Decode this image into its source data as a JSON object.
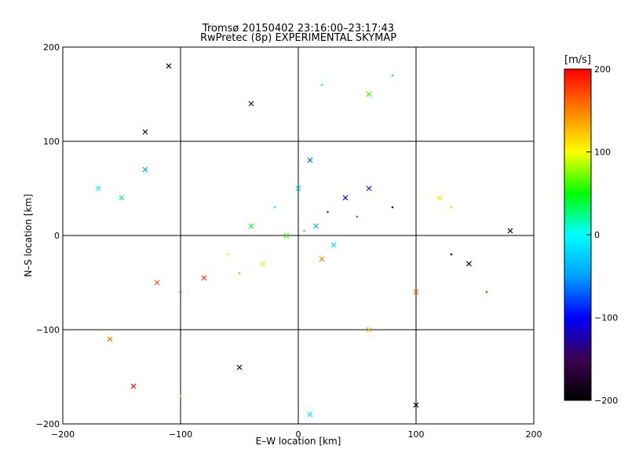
{
  "chart_data": {
    "type": "scatter",
    "title": "Tromsø 20150402 23:16:00–23:17:43",
    "subtitle": "RwPretec (8p) EXPERIMENTAL SKYMAP",
    "xlabel": "E–W location [km]",
    "ylabel": "N–S location [km]",
    "xlim": [
      -200,
      200
    ],
    "ylim": [
      -200,
      200
    ],
    "xticks": [
      "−200",
      "−100",
      "0",
      "100",
      "200"
    ],
    "yticks": [
      "−200",
      "−100",
      "0",
      "100",
      "200"
    ],
    "x_tick_values": [
      -200,
      -100,
      0,
      100,
      200
    ],
    "y_tick_values": [
      -200,
      -100,
      0,
      100,
      200
    ],
    "grid": true,
    "colorbar": {
      "label": "[m/s]",
      "min": -200,
      "max": 200,
      "tick_labels": [
        "200",
        "100",
        "0",
        "−100",
        "−200"
      ],
      "tick_values": [
        200,
        100,
        0,
        -100,
        -200
      ],
      "colormap": [
        "#000000",
        "#3d0050",
        "#0000ff",
        "#00a0ff",
        "#00ffff",
        "#00ff00",
        "#ffff00",
        "#ff8000",
        "#ff0000"
      ]
    },
    "markers": [
      "dot",
      "x"
    ],
    "points": [
      {
        "x": 15,
        "y": 10,
        "v": -40,
        "m": "x"
      },
      {
        "x": 25,
        "y": 25,
        "v": -80,
        "m": "dot"
      },
      {
        "x": 5,
        "y": 5,
        "v": 20,
        "m": "dot"
      },
      {
        "x": -10,
        "y": 0,
        "v": 60,
        "m": "x"
      },
      {
        "x": 40,
        "y": 40,
        "v": -110,
        "m": "x"
      },
      {
        "x": 60,
        "y": 50,
        "v": -90,
        "m": "x"
      },
      {
        "x": 80,
        "y": 30,
        "v": -130,
        "m": "dot"
      },
      {
        "x": 50,
        "y": 20,
        "v": -60,
        "m": "dot"
      },
      {
        "x": 30,
        "y": -10,
        "v": -20,
        "m": "x"
      },
      {
        "x": 20,
        "y": -25,
        "v": 150,
        "m": "x"
      },
      {
        "x": -30,
        "y": -30,
        "v": 110,
        "m": "x"
      },
      {
        "x": -50,
        "y": -40,
        "v": 140,
        "m": "dot"
      },
      {
        "x": -80,
        "y": -45,
        "v": 180,
        "m": "x"
      },
      {
        "x": -100,
        "y": -60,
        "v": 190,
        "m": "dot"
      },
      {
        "x": -120,
        "y": -50,
        "v": 170,
        "m": "x"
      },
      {
        "x": -60,
        "y": -20,
        "v": 90,
        "m": "dot"
      },
      {
        "x": -40,
        "y": 10,
        "v": 40,
        "m": "x"
      },
      {
        "x": -20,
        "y": 30,
        "v": 10,
        "m": "dot"
      },
      {
        "x": 0,
        "y": 50,
        "v": -30,
        "m": "x"
      },
      {
        "x": 10,
        "y": 80,
        "v": -70,
        "m": "x"
      },
      {
        "x": -150,
        "y": 40,
        "v": 30,
        "m": "x"
      },
      {
        "x": -170,
        "y": 50,
        "v": -10,
        "m": "x"
      },
      {
        "x": -130,
        "y": 70,
        "v": -50,
        "m": "x"
      },
      {
        "x": -160,
        "y": -110,
        "v": 160,
        "m": "x"
      },
      {
        "x": -140,
        "y": -160,
        "v": 200,
        "m": "x"
      },
      {
        "x": -100,
        "y": -170,
        "v": 120,
        "m": "dot"
      },
      {
        "x": 130,
        "y": -20,
        "v": -190,
        "m": "dot"
      },
      {
        "x": 145,
        "y": -30,
        "v": -200,
        "m": "x"
      },
      {
        "x": 120,
        "y": 40,
        "v": 110,
        "m": "x"
      },
      {
        "x": 130,
        "y": 30,
        "v": 80,
        "m": "dot"
      },
      {
        "x": 100,
        "y": -60,
        "v": 160,
        "m": "x"
      },
      {
        "x": 160,
        "y": -60,
        "v": 180,
        "m": "dot"
      },
      {
        "x": 60,
        "y": 150,
        "v": 60,
        "m": "x"
      },
      {
        "x": 80,
        "y": 170,
        "v": 40,
        "m": "dot"
      },
      {
        "x": 20,
        "y": 160,
        "v": 20,
        "m": "dot"
      },
      {
        "x": -110,
        "y": 180,
        "v": -200,
        "m": "x"
      },
      {
        "x": -130,
        "y": 110,
        "v": -180,
        "m": "x"
      },
      {
        "x": -40,
        "y": 140,
        "v": -150,
        "m": "x"
      },
      {
        "x": 60,
        "y": -100,
        "v": 130,
        "m": "x"
      },
      {
        "x": 10,
        "y": -190,
        "v": -10,
        "m": "x"
      },
      {
        "x": 100,
        "y": -180,
        "v": -200,
        "m": "x"
      },
      {
        "x": -50,
        "y": -140,
        "v": -190,
        "m": "x"
      },
      {
        "x": 180,
        "y": 5,
        "v": -200,
        "m": "x"
      }
    ]
  }
}
